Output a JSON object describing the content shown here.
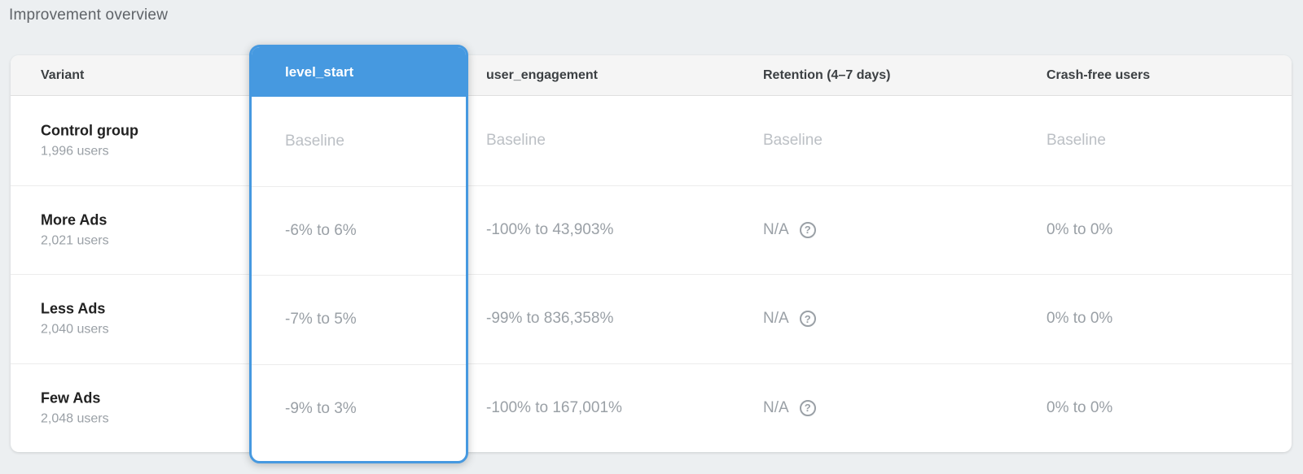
{
  "page": {
    "title": "Improvement overview"
  },
  "table": {
    "columns": [
      {
        "label": "Variant"
      },
      {
        "label": "level_start"
      },
      {
        "label": "user_engagement"
      },
      {
        "label": "Retention (4–7 days)"
      },
      {
        "label": "Crash-free users"
      }
    ],
    "rows": [
      {
        "variant": "Control group",
        "users": "1,996 users",
        "level_start": "Baseline",
        "user_engagement": "Baseline",
        "retention": "Baseline",
        "crash_free": "Baseline"
      },
      {
        "variant": "More Ads",
        "users": "2,021 users",
        "level_start": "-6% to 6%",
        "user_engagement": "-100% to 43,903%",
        "retention": "N/A",
        "crash_free": "0% to 0%"
      },
      {
        "variant": "Less Ads",
        "users": "2,040 users",
        "level_start": "-7% to 5%",
        "user_engagement": "-99% to 836,358%",
        "retention": "N/A",
        "crash_free": "0% to 0%"
      },
      {
        "variant": "Few Ads",
        "users": "2,048 users",
        "level_start": "-9% to 3%",
        "user_engagement": "-100% to 167,001%",
        "retention": "N/A",
        "crash_free": "0% to 0%"
      }
    ]
  },
  "icons": {
    "help_glyph": "?"
  },
  "colors": {
    "accent_blue": "#4699e0",
    "header_bg": "#f5f5f5",
    "page_bg": "#eceff1",
    "baseline_text": "#bcc0c5",
    "value_text": "#9aa0a6"
  }
}
